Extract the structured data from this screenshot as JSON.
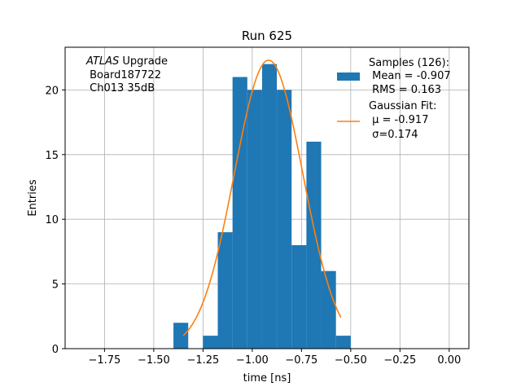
{
  "chart_data": {
    "type": "bar",
    "title": "Run 625",
    "xlabel": "time [ns]",
    "ylabel": "Entries",
    "xlim": [
      -1.95,
      0.1
    ],
    "ylim": [
      0,
      23.3
    ],
    "xticks": [
      -1.75,
      -1.5,
      -1.25,
      -1.0,
      -0.75,
      -0.5,
      -0.25,
      0.0
    ],
    "xtick_labels": [
      "−1.75",
      "−1.50",
      "−1.25",
      "−1.00",
      "−0.75",
      "−0.50",
      "−0.25",
      "0.00"
    ],
    "yticks": [
      0,
      5,
      10,
      15,
      20
    ],
    "ytick_labels": [
      "0",
      "5",
      "10",
      "15",
      "20"
    ],
    "grid": true,
    "legend_position": "top-right",
    "bar_color": "#1f77b4",
    "fit_color": "#ff7f0e",
    "histogram": {
      "name": "Samples (126):",
      "bin_edges": [
        -1.4,
        -1.325,
        -1.25,
        -1.175,
        -1.1,
        -1.025,
        -0.95,
        -0.875,
        -0.8,
        -0.725,
        -0.65,
        -0.575,
        -0.5
      ],
      "counts": [
        2,
        0,
        1,
        9,
        21,
        20,
        22,
        20,
        8,
        16,
        6,
        1
      ],
      "mean_label": " Mean = -0.907",
      "rms_label": " RMS = 0.163"
    },
    "fit": {
      "name": "Gaussian Fit:",
      "mu_label": " μ = -0.917",
      "sigma_label": " σ=0.174",
      "mu": -0.917,
      "sigma": 0.174,
      "amplitude": 22.3,
      "x_range": [
        -1.35,
        -0.55
      ]
    },
    "annotation": {
      "line1_italic": "ATLAS",
      "line1_rest": " Upgrade",
      "line2": " Board187722",
      "line3": " Ch013 35dB"
    }
  }
}
